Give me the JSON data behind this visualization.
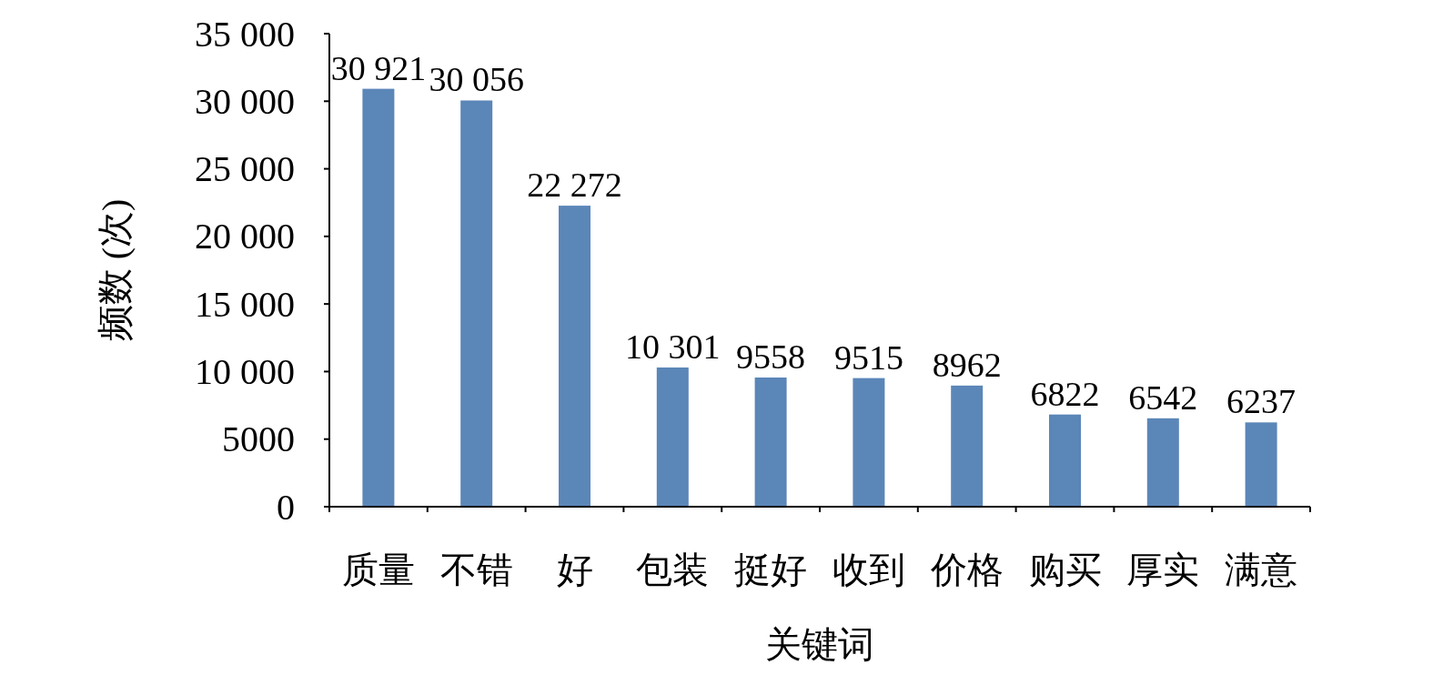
{
  "chart_data": {
    "type": "bar",
    "categories": [
      "质量",
      "不错",
      "好",
      "包装",
      "挺好",
      "收到",
      "价格",
      "购买",
      "厚实",
      "满意"
    ],
    "values": [
      30921,
      30056,
      22272,
      10301,
      9558,
      9515,
      8962,
      6822,
      6542,
      6237
    ],
    "value_labels": [
      "30 921",
      "30 056",
      "22 272",
      "10 301",
      "9558",
      "9515",
      "8962",
      "6822",
      "6542",
      "6237"
    ],
    "color": "#5b86b8",
    "xlabel": "关键词",
    "ylabel": "频数 (次)",
    "ylim": [
      0,
      35000
    ],
    "yticks": [
      0,
      5000,
      {
        "value": 10000,
        "label": "10 000"
      },
      {
        "value": 15000,
        "label": "15 000"
      },
      {
        "value": 20000,
        "label": "20 000"
      },
      {
        "value": 25000,
        "label": "25 000"
      },
      {
        "value": 30000,
        "label": "30 000"
      },
      {
        "value": 35000,
        "label": "35 000"
      }
    ],
    "grid": false
  }
}
